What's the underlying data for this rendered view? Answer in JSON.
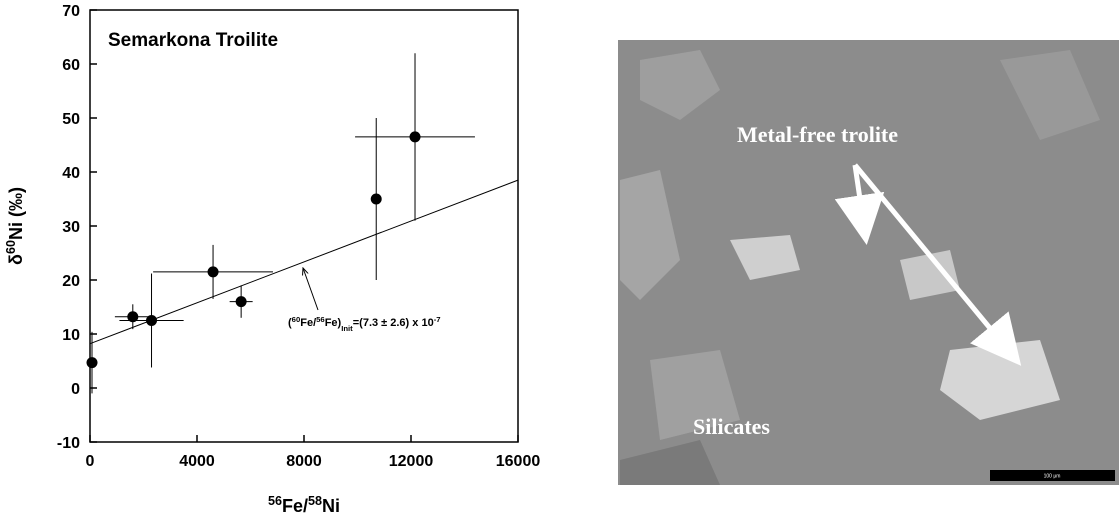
{
  "chart_data": {
    "type": "scatter",
    "title": "Semarkona Troilite",
    "x_label": [
      {
        "text": "56",
        "pos": "super"
      },
      {
        "text": "Fe/",
        "pos": "normal"
      },
      {
        "text": "58",
        "pos": "super"
      },
      {
        "text": "Ni",
        "pos": "normal"
      }
    ],
    "y_label": [
      {
        "text": "δ",
        "pos": "normal"
      },
      {
        "text": "60",
        "pos": "super"
      },
      {
        "text": "Ni (‰)",
        "pos": "normal"
      }
    ],
    "annotation": [
      {
        "text": "(",
        "pos": "normal"
      },
      {
        "text": "60",
        "pos": "super"
      },
      {
        "text": "Fe/",
        "pos": "normal"
      },
      {
        "text": "56",
        "pos": "super"
      },
      {
        "text": "Fe)",
        "pos": "normal"
      },
      {
        "text": "Init",
        "pos": "sub"
      },
      {
        "text": "=(7.3 ± 2.6) x 10",
        "pos": "normal"
      },
      {
        "text": "-7",
        "pos": "super"
      }
    ],
    "x": [
      75,
      1600,
      2300,
      4600,
      5650,
      10700,
      12150
    ],
    "series": [
      {
        "color": "#000000",
        "values": [
          4.7,
          13.2,
          12.5,
          21.5,
          16,
          35,
          46.5
        ],
        "y_errors": [
          5.7,
          2.3,
          8.7,
          5,
          3,
          15,
          15.5
        ],
        "x_errors": [
          100,
          670,
          1200,
          2240,
          430,
          150,
          2240
        ]
      }
    ],
    "fit_line": {
      "x": [
        0,
        16000
      ],
      "y": [
        8.2,
        38.5
      ]
    },
    "xlim": [
      0,
      16000
    ],
    "xticks": [
      0,
      4000,
      8000,
      12000,
      16000
    ],
    "ylim": [
      -10,
      70
    ],
    "yticks": [
      -10,
      0,
      10,
      20,
      30,
      40,
      50,
      60,
      70
    ]
  },
  "image": {
    "labels": [
      "Metal-free trolite",
      "Silicates"
    ],
    "scale_label": "100 μm"
  }
}
